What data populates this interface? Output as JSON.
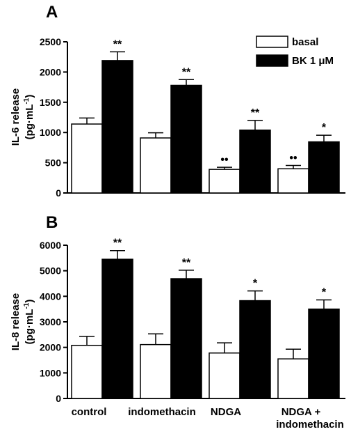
{
  "chart_data": [
    {
      "type": "bar",
      "panel": "A",
      "ylabel_line1": "IL-6 release",
      "ylabel_line2": "(pg·mL",
      "ylabel_sup": "-1",
      "ylabel_close": ")",
      "ylim": [
        0,
        2500
      ],
      "yticks": [
        0,
        500,
        1000,
        1500,
        2000,
        2500
      ],
      "categories": [
        "control",
        "indomethacin",
        "NDGA",
        "NDGA +\nindomethacin"
      ],
      "series": [
        {
          "name": "basal",
          "color": "#ffffff",
          "values": [
            1140,
            910,
            390,
            400
          ],
          "errors": [
            100,
            85,
            35,
            55
          ],
          "markers": [
            "",
            "",
            "••",
            "••"
          ]
        },
        {
          "name": "BK 1 μM",
          "color": "#000000",
          "values": [
            2190,
            1780,
            1040,
            845
          ],
          "errors": [
            145,
            95,
            160,
            110
          ],
          "markers": [
            "**",
            "**",
            "**",
            "*"
          ]
        }
      ],
      "legend": "top-right"
    },
    {
      "type": "bar",
      "panel": "B",
      "ylabel_line1": "IL-8 release",
      "ylabel_line2": "(pg·mL",
      "ylabel_sup": "-1",
      "ylabel_close": ")",
      "ylim": [
        0,
        6000
      ],
      "yticks": [
        0,
        1000,
        2000,
        3000,
        4000,
        5000,
        6000
      ],
      "categories": [
        "control",
        "indomethacin",
        "NDGA",
        "NDGA +\nindomethacin"
      ],
      "series": [
        {
          "name": "basal",
          "color": "#ffffff",
          "values": [
            2080,
            2110,
            1780,
            1550
          ],
          "errors": [
            350,
            420,
            400,
            380
          ],
          "markers": [
            "",
            "",
            "",
            ""
          ]
        },
        {
          "name": "BK 1 μM",
          "color": "#000000",
          "values": [
            5450,
            4690,
            3830,
            3500
          ],
          "errors": [
            340,
            330,
            380,
            360
          ],
          "markers": [
            "**",
            "**",
            "*",
            "*"
          ]
        }
      ]
    }
  ],
  "category_labels": [
    "control",
    "indomethacin",
    "NDGA",
    "NDGA +",
    "indomethacin"
  ]
}
